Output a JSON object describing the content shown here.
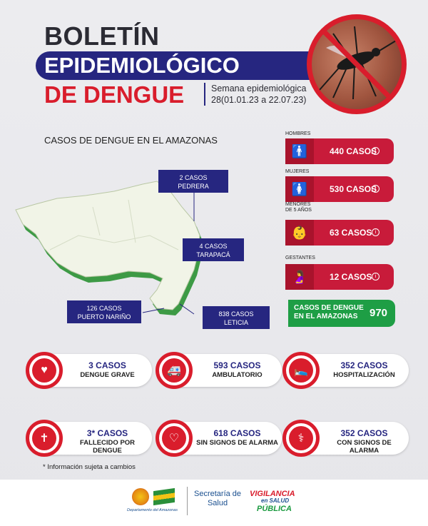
{
  "header": {
    "title_line1": "BOLETÍN",
    "title_line2": "EPIDEMIOLÓGICO",
    "title_line3": "DE DENGUE",
    "week_line1": "Semana epidemiológica",
    "week_line2": "28(01.01.23 a 22.07.23)"
  },
  "map": {
    "title": "CASOS DE DENGUE EN EL AMAZONAS",
    "callouts": [
      {
        "line1": "2 CASOS",
        "line2": "PEDRERA"
      },
      {
        "line1": "4 CASOS",
        "line2": "TARAPACÁ"
      },
      {
        "line1": "126 CASOS",
        "line2": "PUERTO NARIÑO"
      },
      {
        "line1": "838 CASOS",
        "line2": "LETICIA"
      }
    ]
  },
  "groups": [
    {
      "label": "HOMBRES",
      "value": "440 CASOS",
      "icon": "man-icon"
    },
    {
      "label": "MUJERES",
      "value": "530 CASOS",
      "icon": "woman-icon"
    },
    {
      "label": "MENORES DE 5 AÑOS",
      "value": "63 CASOS",
      "icon": "child-icon"
    },
    {
      "label": "GESTANTES",
      "value": "12 CASOS",
      "icon": "pregnant-icon"
    }
  ],
  "total": {
    "label": "CASOS DE DENGUE EN EL AMAZONAS",
    "value": "970"
  },
  "pills": [
    {
      "number": "3 CASOS",
      "text": "DENGUE GRAVE",
      "icon": "heartbeat-icon"
    },
    {
      "number": "593 CASOS",
      "text": "AMBULATORIO",
      "icon": "ambulance-icon"
    },
    {
      "number": "352 CASOS",
      "text": "HOSPITALIZACIÓN",
      "icon": "hospital-bed-icon"
    },
    {
      "number": "3* CASOS",
      "text": "FALLECIDO POR DENGUE",
      "icon": "cross-icon"
    },
    {
      "number": "618 CASOS",
      "text": "SIN SIGNOS DE ALARMA",
      "icon": "heart-pulse-icon"
    },
    {
      "number": "352 CASOS",
      "text": "CON SIGNOS DE ALARMA",
      "icon": "patient-icon"
    }
  ],
  "note": "* Información sujeta a cambios",
  "footer": {
    "dept": "Departamento del Amazonas",
    "secretaria_line1": "Secretaría de",
    "secretaria_line2": "Salud",
    "vig_line1": "VIGILANCIA",
    "vig_line2": "en SALUD",
    "vig_line3": "PÚBLICA"
  },
  "colors": {
    "navy": "#262680",
    "red": "#d91d2c",
    "green": "#1e9e45"
  }
}
